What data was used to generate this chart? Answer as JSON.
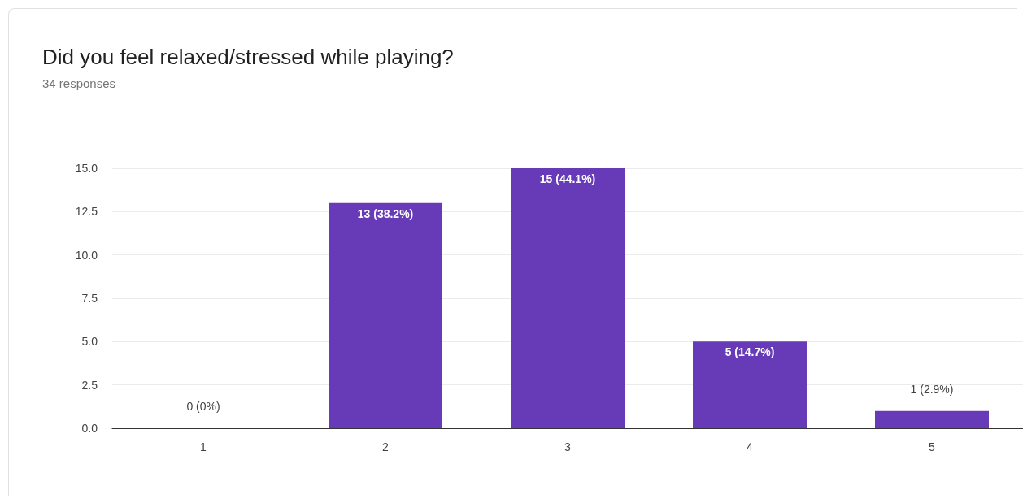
{
  "chart_data": {
    "type": "bar",
    "title": "Did you feel relaxed/stressed while playing?",
    "subtitle": "34 responses",
    "categories": [
      "1",
      "2",
      "3",
      "4",
      "5"
    ],
    "values": [
      0,
      13,
      15,
      5,
      1
    ],
    "value_labels": [
      "0 (0%)",
      "13 (38.2%)",
      "15 (44.1%)",
      "5 (14.7%)",
      "1 (2.9%)"
    ],
    "color": "#673ab7",
    "ylim": [
      0,
      15
    ],
    "yticks": [
      {
        "value": 0,
        "label": "0.0"
      },
      {
        "value": 2.5,
        "label": "2.5"
      },
      {
        "value": 5,
        "label": "5.0"
      },
      {
        "value": 7.5,
        "label": "7.5"
      },
      {
        "value": 10,
        "label": "10.0"
      },
      {
        "value": 12.5,
        "label": "12.5"
      },
      {
        "value": 15,
        "label": "15.0"
      }
    ],
    "grid": "y"
  }
}
